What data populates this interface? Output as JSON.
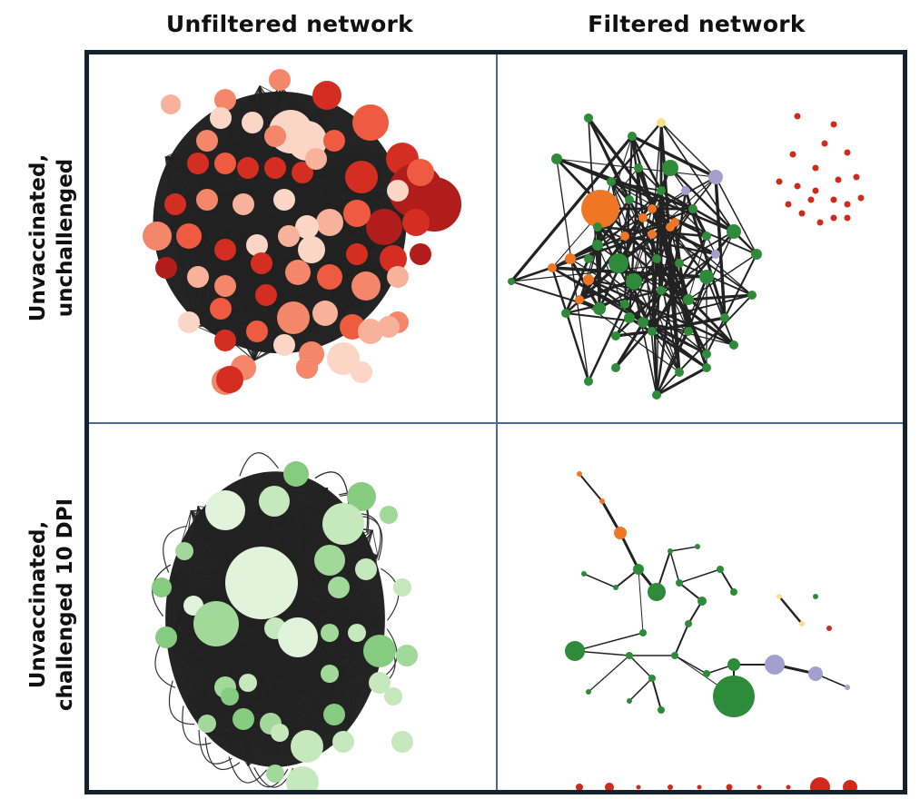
{
  "headers": {
    "unfiltered": "Unfiltered network",
    "filtered": "Filtered network"
  },
  "rows": {
    "top": {
      "line1": "Unvaccinated,",
      "line2": "unchallenged"
    },
    "bottom": {
      "line1": "Unvaccinated,",
      "line2": "challenged 10 DPI"
    }
  },
  "colors": {
    "frame": "#16212e",
    "divider": "#4a6c8e",
    "edge": "#222222",
    "red_palette": [
      "#fbd6c6",
      "#f8b29b",
      "#f4866a",
      "#ee5b40",
      "#d42e22",
      "#b11d1a"
    ],
    "green_palette": [
      "#e2f3dc",
      "#c6e8bd",
      "#a2d89a",
      "#86cc80"
    ],
    "green_node": "#2e8b3a",
    "orange_node": "#ee7624",
    "purple_node": "#a49fcd",
    "yellow_node": "#f7e08c",
    "red_node": "#cf2a1c"
  },
  "panels": {
    "top_left": {
      "theme": "red",
      "style": "dense-hairball"
    },
    "top_right": {
      "theme": "mixed",
      "style": "sparse-filtered"
    },
    "bottom_left": {
      "theme": "green",
      "style": "dense-hairball"
    },
    "bottom_right": {
      "theme": "mixed",
      "style": "tree-filtered"
    }
  }
}
